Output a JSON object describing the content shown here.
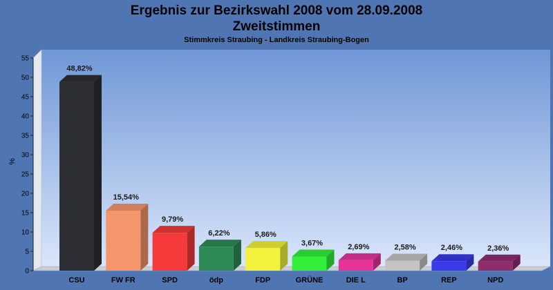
{
  "page": {
    "title_line1": "Ergebnis zur Bezirkswahl 2008 vom 28.09.2008",
    "title_line2": "Zweitstimmen",
    "subtitle": "Stimmkreis Straubing - Landkreis Straubing-Bogen"
  },
  "colors": {
    "page_background": "#4f76b3",
    "plot_top": "#6f97d6",
    "plot_bottom": "#dae6fb"
  },
  "chart_data": {
    "type": "bar",
    "ylabel": "%",
    "ylim": [
      0,
      55
    ],
    "yticks": [
      0,
      5,
      10,
      15,
      20,
      25,
      30,
      35,
      40,
      45,
      50,
      55
    ],
    "grid": false,
    "style": "3d",
    "categories": [
      "CSU",
      "FW FR",
      "SPD",
      "ödp",
      "FDP",
      "GRÜNE",
      "DIE L",
      "BP",
      "REP",
      "NPD"
    ],
    "values": [
      48.82,
      15.54,
      9.79,
      6.22,
      5.86,
      3.67,
      2.69,
      2.58,
      2.46,
      2.36
    ],
    "value_labels": [
      "48,82%",
      "15,54%",
      "9,79%",
      "6,22%",
      "5,86%",
      "3,67%",
      "2,69%",
      "2,58%",
      "2,46%",
      "2,36%"
    ],
    "bar_colors": [
      "#2c2e33",
      "#f4956b",
      "#f43a3a",
      "#2e8b57",
      "#f2f23c",
      "#32f03a",
      "#e8349a",
      "#c3c3c3",
      "#3a3ae8",
      "#8e2c6e"
    ]
  }
}
